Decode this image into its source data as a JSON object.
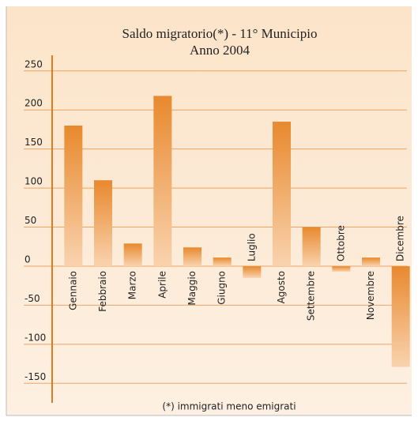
{
  "chart_data": {
    "type": "bar",
    "title": "Saldo migratorio(*) - 11° Municipio",
    "subtitle": "Anno 2004",
    "note": "(*) immigrati meno emigrati",
    "categories": [
      "Gennaio",
      "Febbraio",
      "Marzo",
      "Aprile",
      "Maggio",
      "Giugno",
      "Luglio",
      "Agosto",
      "Settembre",
      "Ottobre",
      "Novembre",
      "Dicembre"
    ],
    "values": [
      180,
      110,
      29,
      218,
      24,
      11,
      -15,
      185,
      50,
      -7,
      11,
      -129
    ],
    "color": "#e8892e",
    "ylim": [
      -175,
      270
    ],
    "yticks": [
      -150,
      -100,
      -50,
      0,
      50,
      100,
      150,
      200,
      250
    ],
    "grid": true
  }
}
